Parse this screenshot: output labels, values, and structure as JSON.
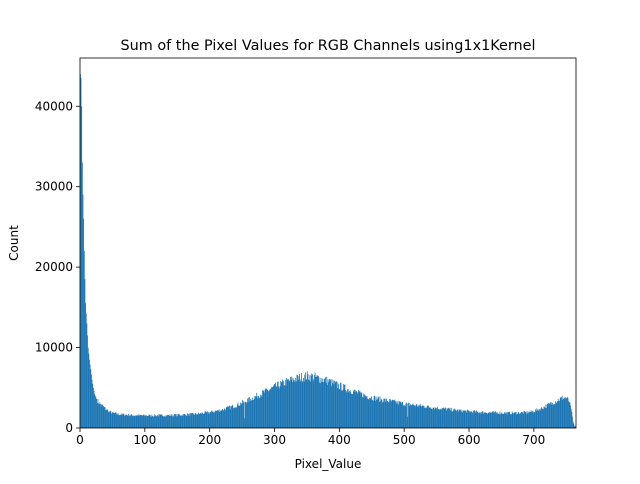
{
  "chart_data": {
    "type": "bar",
    "title": "Sum of the Pixel Values for RGB Channels using1x1Kernel",
    "xlabel": "Pixel_Value",
    "ylabel": "Count",
    "xlim": [
      0,
      765
    ],
    "ylim": [
      0,
      46000
    ],
    "xticks": [
      0,
      100,
      200,
      300,
      400,
      500,
      600,
      700
    ],
    "yticks": [
      0,
      10000,
      20000,
      30000,
      40000
    ],
    "grid": false,
    "legend": "none",
    "bar_color": "#1f77b4",
    "bin_width": 1,
    "profile": [
      [
        0,
        44000
      ],
      [
        1,
        43500
      ],
      [
        2,
        40000
      ],
      [
        3,
        33000
      ],
      [
        4,
        29000
      ],
      [
        5,
        26000
      ],
      [
        6,
        22000
      ],
      [
        7,
        18500
      ],
      [
        8,
        15500
      ],
      [
        10,
        13000
      ],
      [
        12,
        10000
      ],
      [
        14,
        8500
      ],
      [
        16,
        7300
      ],
      [
        18,
        6000
      ],
      [
        20,
        5000
      ],
      [
        22,
        4200
      ],
      [
        25,
        3600
      ],
      [
        28,
        3200
      ],
      [
        32,
        2900
      ],
      [
        36,
        2600
      ],
      [
        40,
        2300
      ],
      [
        45,
        2000
      ],
      [
        50,
        1850
      ],
      [
        60,
        1700
      ],
      [
        70,
        1650
      ],
      [
        80,
        1580
      ],
      [
        100,
        1550
      ],
      [
        120,
        1550
      ],
      [
        140,
        1580
      ],
      [
        160,
        1650
      ],
      [
        180,
        1750
      ],
      [
        200,
        1950
      ],
      [
        220,
        2300
      ],
      [
        240,
        2800
      ],
      [
        260,
        3500
      ],
      [
        280,
        4300
      ],
      [
        300,
        5100
      ],
      [
        320,
        5800
      ],
      [
        340,
        6300
      ],
      [
        350,
        6450
      ],
      [
        360,
        6350
      ],
      [
        380,
        5900
      ],
      [
        400,
        5200
      ],
      [
        420,
        4600
      ],
      [
        440,
        4000
      ],
      [
        460,
        3600
      ],
      [
        480,
        3300
      ],
      [
        500,
        3000
      ],
      [
        520,
        2800
      ],
      [
        540,
        2600
      ],
      [
        560,
        2400
      ],
      [
        580,
        2200
      ],
      [
        600,
        2050
      ],
      [
        620,
        1950
      ],
      [
        640,
        1900
      ],
      [
        660,
        1850
      ],
      [
        680,
        1900
      ],
      [
        690,
        1950
      ],
      [
        700,
        2100
      ],
      [
        710,
        2400
      ],
      [
        720,
        2800
      ],
      [
        730,
        3200
      ],
      [
        740,
        3600
      ],
      [
        745,
        3800
      ],
      [
        750,
        3700
      ],
      [
        755,
        3200
      ],
      [
        758,
        2000
      ],
      [
        760,
        800
      ],
      [
        762,
        300
      ],
      [
        764,
        100
      ],
      [
        765,
        0
      ]
    ],
    "annotations_dips": [
      [
        253,
        1200
      ],
      [
        505,
        1400
      ]
    ]
  }
}
